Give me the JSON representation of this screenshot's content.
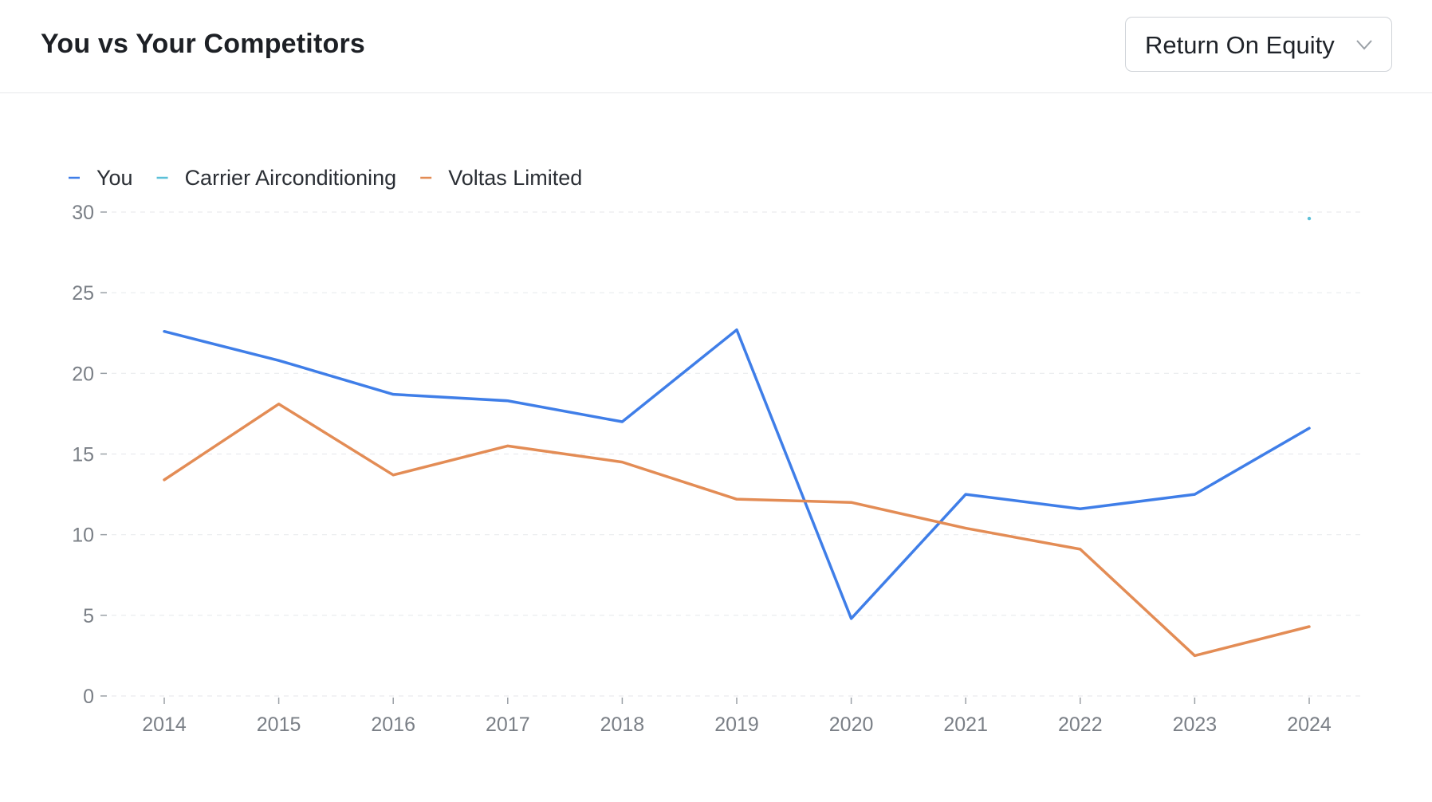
{
  "header": {
    "title": "You vs Your Competitors",
    "metric_select": {
      "value": "Return On Equity"
    }
  },
  "chart_data": {
    "type": "line",
    "x": [
      "2014",
      "2015",
      "2016",
      "2017",
      "2018",
      "2019",
      "2020",
      "2021",
      "2022",
      "2023",
      "2024"
    ],
    "ylim": [
      0,
      30
    ],
    "yticks": [
      "0",
      "5",
      "10",
      "15",
      "20",
      "25",
      "30"
    ],
    "grid": true,
    "legend_position": "top-left",
    "series": [
      {
        "name": "You",
        "color": "#3f7ee8",
        "values": [
          22.6,
          20.8,
          18.7,
          18.3,
          17.0,
          22.7,
          4.8,
          12.5,
          11.6,
          12.5,
          16.6
        ]
      },
      {
        "name": "Carrier Airconditioning",
        "color": "#5cc0d8",
        "values": [
          null,
          null,
          null,
          null,
          null,
          null,
          null,
          null,
          null,
          null,
          29.6
        ]
      },
      {
        "name": "Voltas Limited",
        "color": "#e38c55",
        "values": [
          13.4,
          18.1,
          13.7,
          15.5,
          14.5,
          12.2,
          12.0,
          10.4,
          9.1,
          2.5,
          4.3
        ]
      }
    ]
  }
}
